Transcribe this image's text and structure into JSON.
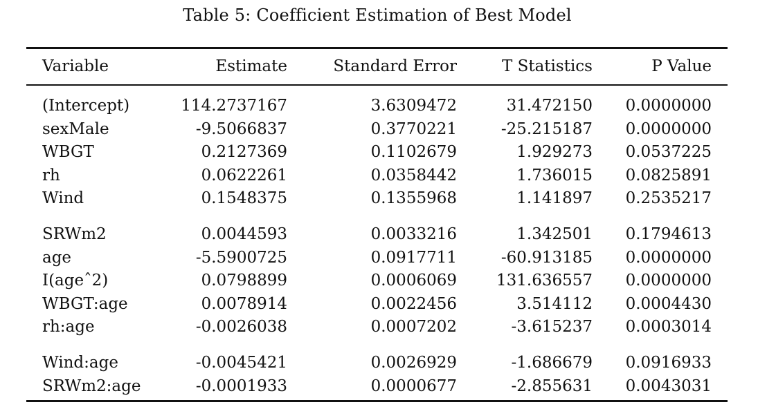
{
  "caption": "Table 5: Coefficient Estimation of Best Model",
  "table": {
    "headers": [
      "Variable",
      "Estimate",
      "Standard Error",
      "T Statistics",
      "P Value"
    ],
    "groups": [
      [
        [
          "(Intercept)",
          "114.2737167",
          "3.6309472",
          "31.472150",
          "0.0000000"
        ],
        [
          "sexMale",
          "-9.5066837",
          "0.3770221",
          "-25.215187",
          "0.0000000"
        ],
        [
          "WBGT",
          "0.2127369",
          "0.1102679",
          "1.929273",
          "0.0537225"
        ],
        [
          "rh",
          "0.0622261",
          "0.0358442",
          "1.736015",
          "0.0825891"
        ],
        [
          "Wind",
          "0.1548375",
          "0.1355968",
          "1.141897",
          "0.2535217"
        ]
      ],
      [
        [
          "SRWm2",
          "0.0044593",
          "0.0033216",
          "1.342501",
          "0.1794613"
        ],
        [
          "age",
          "-5.5900725",
          "0.0917711",
          "-60.913185",
          "0.0000000"
        ],
        [
          "I(ageˆ2)",
          "0.0798899",
          "0.0006069",
          "131.636557",
          "0.0000000"
        ],
        [
          "WBGT:age",
          "0.0078914",
          "0.0022456",
          "3.514112",
          "0.0004430"
        ],
        [
          "rh:age",
          "-0.0026038",
          "0.0007202",
          "-3.615237",
          "0.0003014"
        ]
      ],
      [
        [
          "Wind:age",
          "-0.0045421",
          "0.0026929",
          "-1.686679",
          "0.0916933"
        ],
        [
          "SRWm2:age",
          "-0.0001933",
          "0.0000677",
          "-2.855631",
          "0.0043031"
        ]
      ]
    ]
  }
}
